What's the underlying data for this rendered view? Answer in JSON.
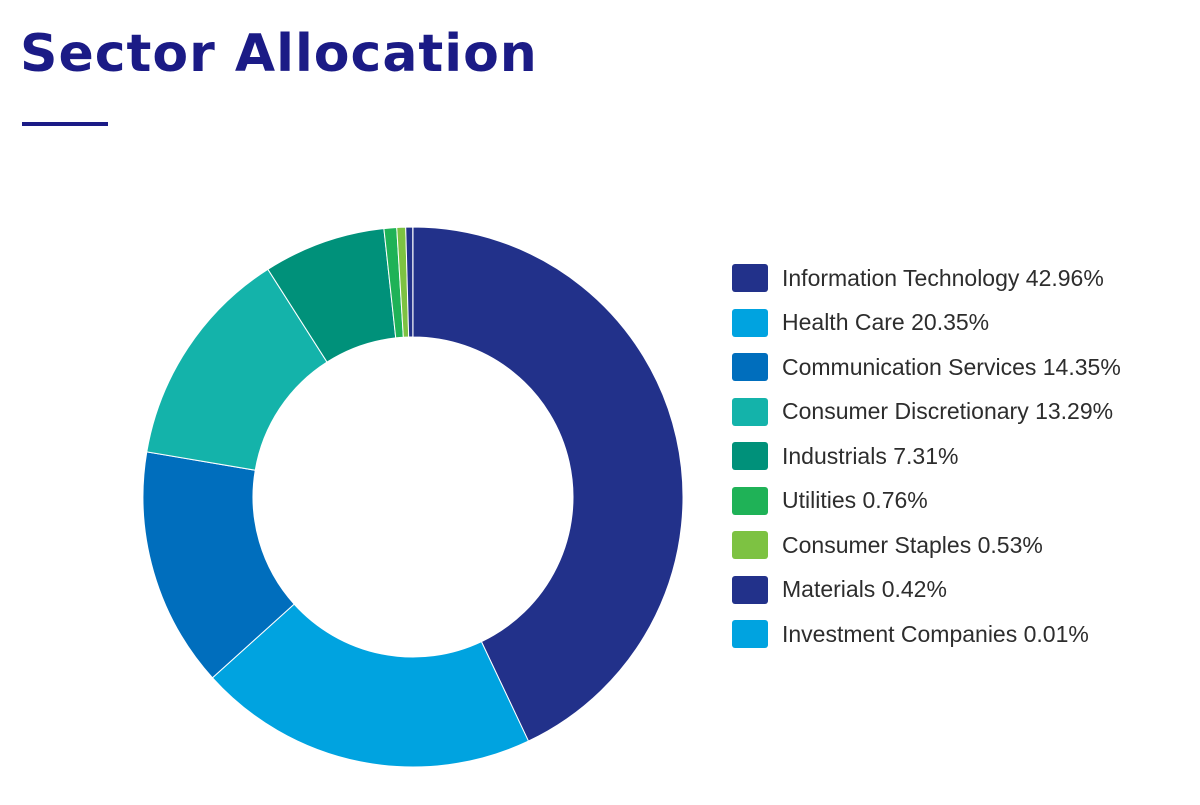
{
  "page": {
    "title": "Sector Allocation",
    "title_color": "#1b1b86"
  },
  "chart_data": {
    "type": "pie",
    "variant": "donut",
    "title": "Sector Allocation",
    "legend_position": "right",
    "slices": [
      {
        "label": "Information Technology",
        "value": 42.96,
        "display": "Information Technology 42.96%",
        "color": "#22318a"
      },
      {
        "label": "Health Care",
        "value": 20.35,
        "display": "Health Care 20.35%",
        "color": "#00a3e0"
      },
      {
        "label": "Communication Services",
        "value": 14.35,
        "display": "Communication Services 14.35%",
        "color": "#006ebd"
      },
      {
        "label": "Consumer Discretionary",
        "value": 13.29,
        "display": "Consumer Discretionary 13.29%",
        "color": "#14b3aa"
      },
      {
        "label": "Industrials",
        "value": 7.31,
        "display": "Industrials 7.31%",
        "color": "#00917a"
      },
      {
        "label": "Utilities",
        "value": 0.76,
        "display": "Utilities 0.76%",
        "color": "#1fb257"
      },
      {
        "label": "Consumer Staples",
        "value": 0.53,
        "display": "Consumer Staples 0.53%",
        "color": "#7dc242"
      },
      {
        "label": "Materials",
        "value": 0.42,
        "display": "Materials 0.42%",
        "color": "#22318a"
      },
      {
        "label": "Investment Companies",
        "value": 0.01,
        "display": "Investment Companies 0.01%",
        "color": "#00a3e0"
      }
    ]
  }
}
